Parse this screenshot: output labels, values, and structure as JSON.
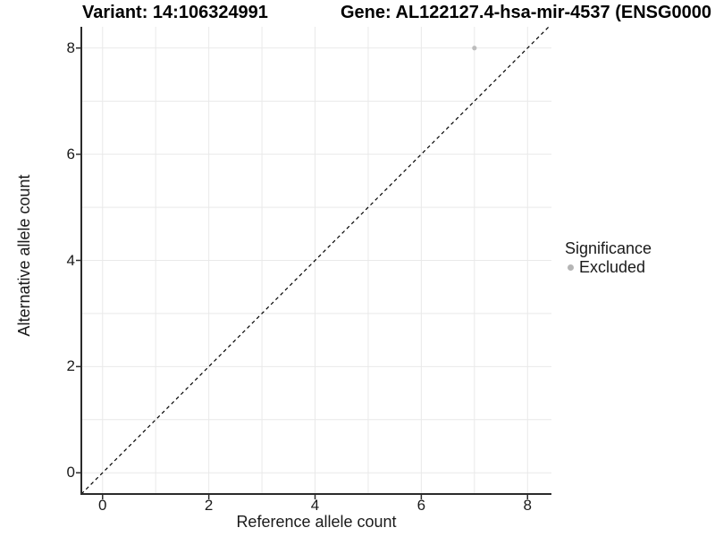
{
  "chart_data": {
    "type": "scatter",
    "title_left": "Variant: 14:106324991",
    "title_right": "Gene: AL122127.4-hsa-mir-4537 (ENSG0000",
    "xlabel": "Reference allele count",
    "ylabel": "Alternative allele count",
    "xlim": [
      -0.4,
      8.45
    ],
    "ylim": [
      -0.4,
      8.4
    ],
    "x_ticks": [
      0,
      2,
      4,
      6,
      8
    ],
    "y_ticks": [
      0,
      2,
      4,
      6,
      8
    ],
    "grid_lines": [
      0,
      1,
      2,
      3,
      4,
      5,
      6,
      7,
      8
    ],
    "grid_on": true,
    "identity_line": {
      "type": "y=x",
      "style": "dashed",
      "color": "#000000"
    },
    "points": [
      {
        "x": 7,
        "y": 8,
        "significance": "Excluded"
      }
    ],
    "point_color": "#bdbdbd",
    "point_radius": 2.6,
    "legend": {
      "title": "Significance",
      "position": "right",
      "entries": [
        {
          "label": "Excluded",
          "color": "#b5b5b5"
        }
      ]
    },
    "colors": {
      "grid": "#e9e9e9",
      "axis": "#2b2b2b",
      "text": "#1a1a1a",
      "title": "#000000",
      "background": "#ffffff"
    }
  }
}
